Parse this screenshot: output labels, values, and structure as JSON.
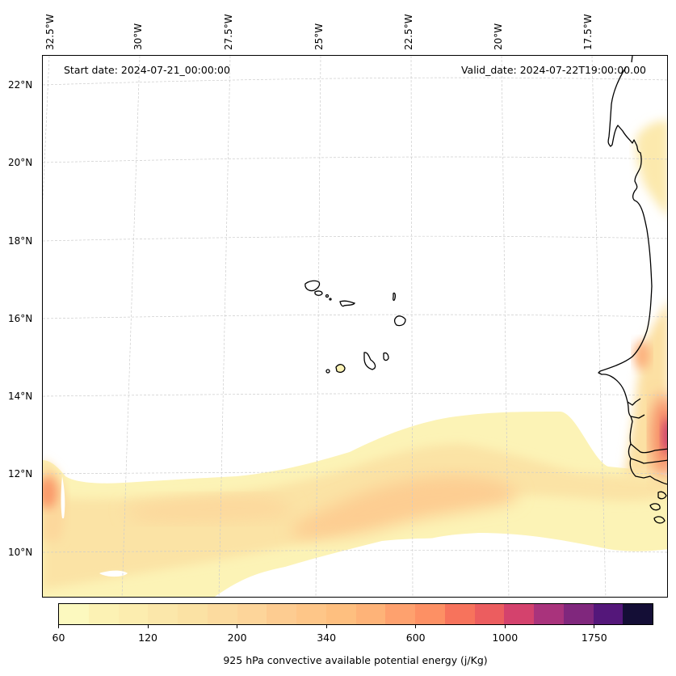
{
  "map": {
    "start_date": "Start date: 2024-07-21_00:00:00",
    "valid_date": "Valid_date: 2024-07-22T19:00:00.00",
    "longitude_labels": [
      "32.5°W",
      "30°W",
      "27.5°W",
      "25°W",
      "22.5°W",
      "20°W",
      "17.5°W"
    ],
    "latitude_labels": [
      "22°N",
      "20°N",
      "18°N",
      "16°N",
      "14°N",
      "12°N",
      "10°N"
    ],
    "extent": {
      "lon_min": -32.5,
      "lon_max": -16.2,
      "lat_min": 8.9,
      "lat_max": 22.8
    },
    "features": [
      "Cape Verde islands",
      "West African coastline (Mauritania, Senegal, Gambia, Guinea-Bissau)"
    ],
    "field": "925 hPa CAPE",
    "field_summary": "Band of 60-400 J/kg CAPE along ~10-13°N across the Atlantic; maximum ~1000-1200 J/kg over inland Senegal/Gambia near the east edge; local ~400 J/kg at western edge near 11.5°N"
  },
  "colorbar": {
    "title": "925 hPa convective available potential energy (j/Kg)",
    "tick_labels": [
      "60",
      "120",
      "200",
      "340",
      "600",
      "1000",
      "1750"
    ],
    "colors": [
      "#fcf9bf",
      "#fcf2b4",
      "#fcedaf",
      "#fbe7aa",
      "#fbe2a4",
      "#fcdb9f",
      "#fdd59a",
      "#fdcc91",
      "#fec688",
      "#febf7f",
      "#feb378",
      "#fea16e",
      "#fd9064",
      "#f7735c",
      "#ec5d5f",
      "#d4426d",
      "#a9337c",
      "#80277d",
      "#54177a",
      "#140e36"
    ]
  }
}
